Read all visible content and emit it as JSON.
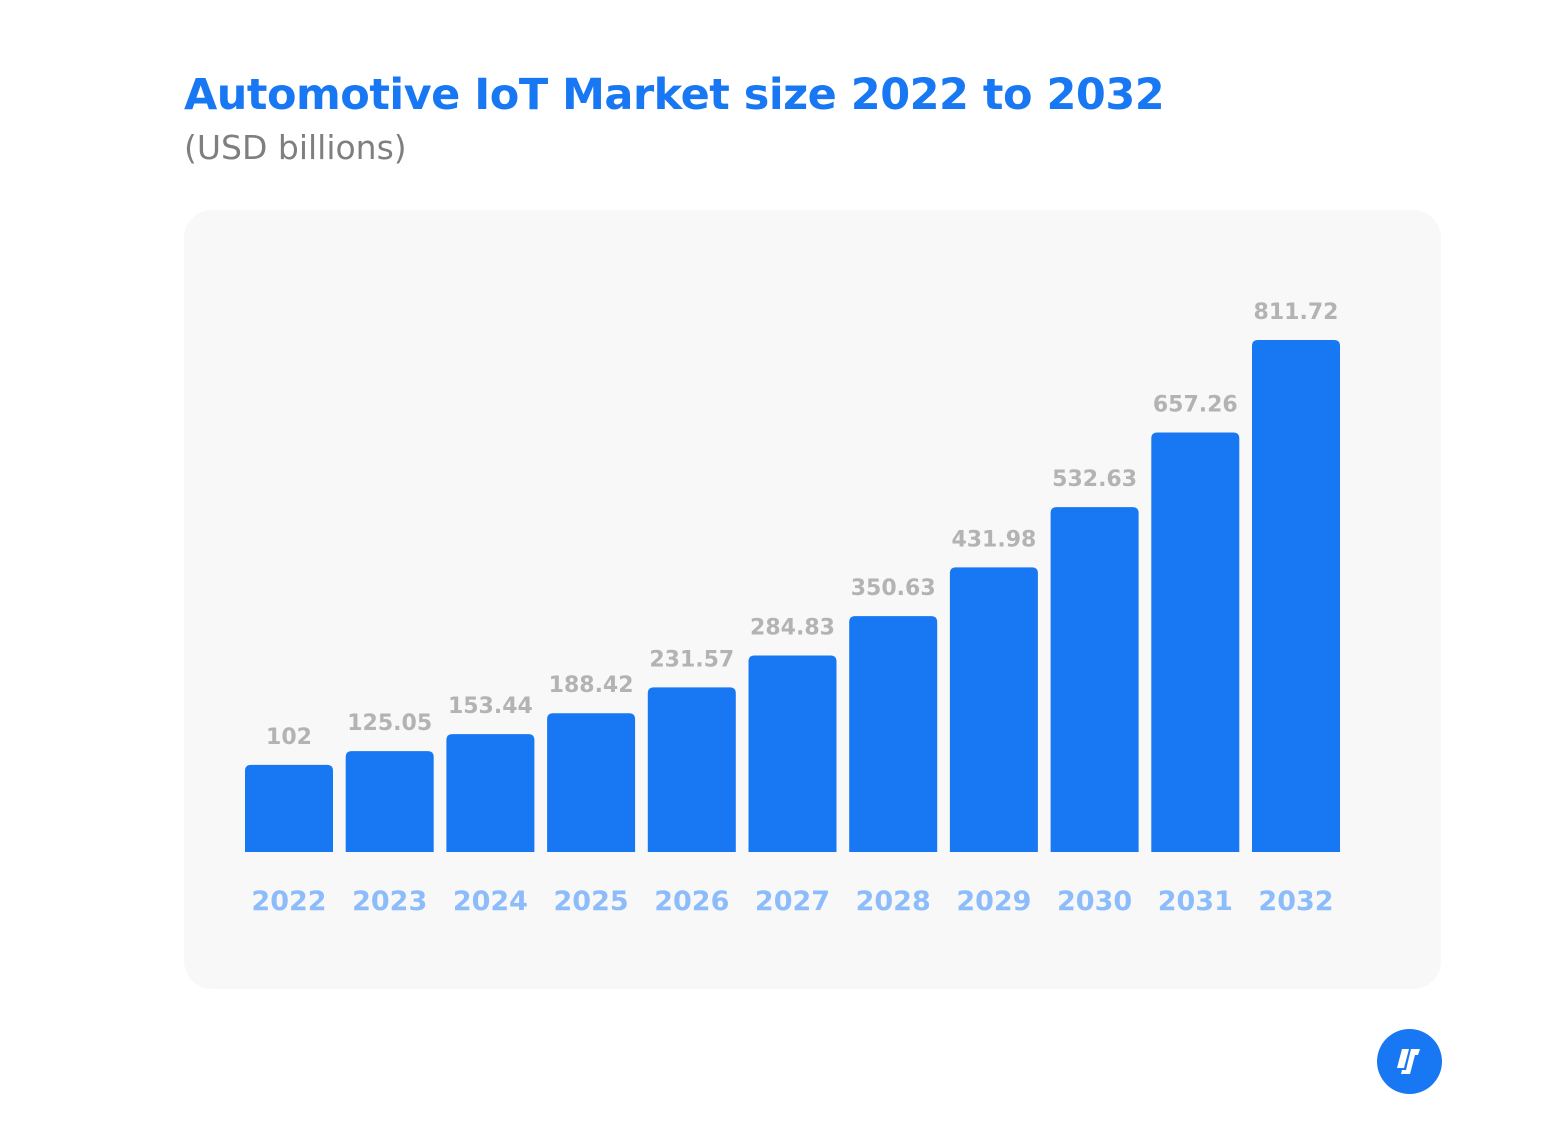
{
  "chart_data": {
    "type": "bar",
    "title": "Automotive IoT Market size 2022 to 2032",
    "subtitle": "(USD billions)",
    "categories": [
      "2022",
      "2023",
      "2024",
      "2025",
      "2026",
      "2027",
      "2028",
      "2029",
      "2030",
      "2031",
      "2032"
    ],
    "values": [
      102,
      125.05,
      153.44,
      188.42,
      231.57,
      284.83,
      350.63,
      431.98,
      532.63,
      657.26,
      811.72
    ],
    "value_labels": [
      "102",
      "125.05",
      "153.44",
      "188.42",
      "231.57",
      "284.83",
      "350.63",
      "431.98",
      "532.63",
      "657.26",
      "811.72"
    ],
    "xlabel": "",
    "ylabel": "",
    "grid": false,
    "legend": "none",
    "colors": {
      "bar": "#1877f2",
      "value_label": "#b3b3b3",
      "category_label": "#8dbcfb",
      "title": "#1877f2",
      "subtitle": "#7f7f7f",
      "panel": "#f8f8f8"
    }
  },
  "logo": {
    "icon": "brand-logo-icon",
    "color": "#1877f2"
  }
}
